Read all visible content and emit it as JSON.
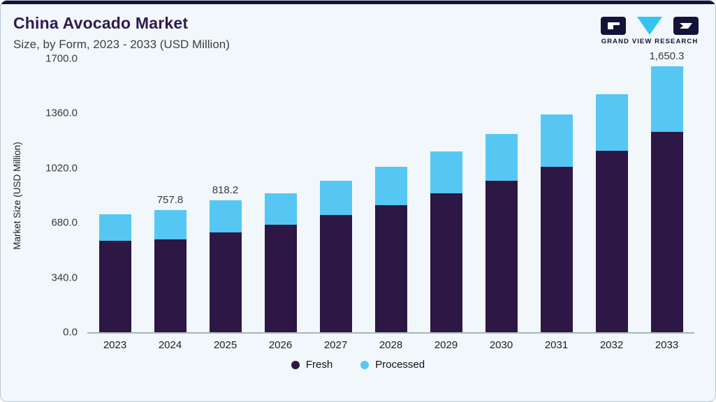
{
  "header": {
    "title": "China Avocado Market",
    "subtitle": "Size, by Form, 2023 - 2033 (USD Million)",
    "logo_text": "GRAND VIEW RESEARCH"
  },
  "colors": {
    "fresh": "#2d1745",
    "processed": "#56c7f2",
    "accent_bar": "#131339",
    "title": "#2d1b4e",
    "card_bg": "#f1f7fa"
  },
  "chart_data": {
    "type": "bar",
    "stacked": true,
    "title": "China Avocado Market Size, by Form, 2023 - 2033 (USD Million)",
    "xlabel": "",
    "ylabel": "Market Size (USD Million)",
    "ylim": [
      0,
      1700
    ],
    "grid": false,
    "legend_position": "bottom",
    "categories": [
      "2023",
      "2024",
      "2025",
      "2026",
      "2027",
      "2028",
      "2029",
      "2030",
      "2031",
      "2032",
      "2033"
    ],
    "series": [
      {
        "name": "Fresh",
        "color": "#2d1745",
        "values": [
          570,
          575,
          620,
          668,
          728,
          790,
          862,
          940,
          1030,
          1128,
          1245
        ]
      },
      {
        "name": "Processed",
        "color": "#56c7f2",
        "values": [
          162,
          182.8,
          198.2,
          197,
          215,
          240,
          263,
          290,
          325,
          352,
          405.3
        ]
      }
    ],
    "value_labels": [
      "",
      "757.8",
      "818.2",
      "",
      "",
      "",
      "",
      "",
      "",
      "",
      "1,650.3"
    ],
    "yticks": [
      {
        "label": "0.0",
        "value": 0
      },
      {
        "label": "340.0",
        "value": 340
      },
      {
        "label": "680.0",
        "value": 680
      },
      {
        "label": "1020.0",
        "value": 1020
      },
      {
        "label": "1360.0",
        "value": 1360
      },
      {
        "label": "1700.0",
        "value": 1700
      }
    ]
  }
}
